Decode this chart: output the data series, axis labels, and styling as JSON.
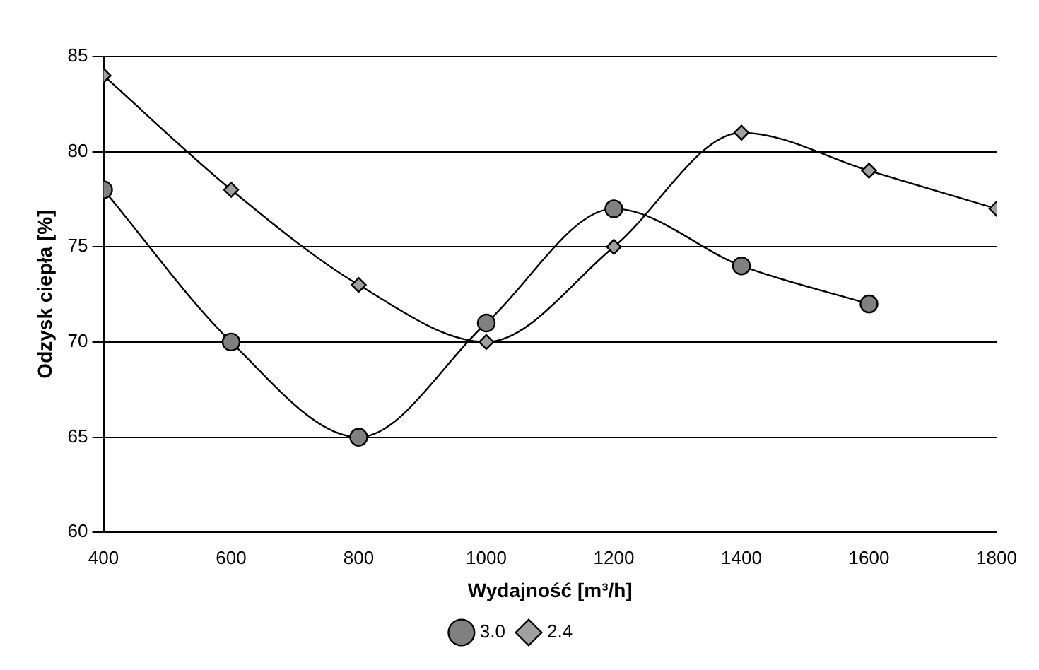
{
  "chart_data": {
    "type": "line",
    "xlabel": "Wydajność [m³/h]",
    "ylabel": "Odzysk ciepła [%]",
    "x": [
      400,
      600,
      800,
      1000,
      1200,
      1400,
      1600,
      1800
    ],
    "series": [
      {
        "name": "3.0",
        "color": "#808080",
        "marker": "circle",
        "values": [
          78,
          70,
          65,
          71,
          77,
          74,
          72,
          null
        ]
      },
      {
        "name": "2.4",
        "color": "#a0a0a0",
        "marker": "diamond",
        "values": [
          84,
          78,
          73,
          70,
          75,
          81,
          79,
          77
        ]
      }
    ],
    "xlim": [
      400,
      1800
    ],
    "xticks": [
      400,
      600,
      800,
      1000,
      1200,
      1400,
      1600,
      1800
    ],
    "ylim": [
      60,
      85
    ],
    "yticks": [
      60,
      65,
      70,
      75,
      80,
      85
    ],
    "grid": "y",
    "legend": "bottom",
    "line_style": "solid"
  }
}
